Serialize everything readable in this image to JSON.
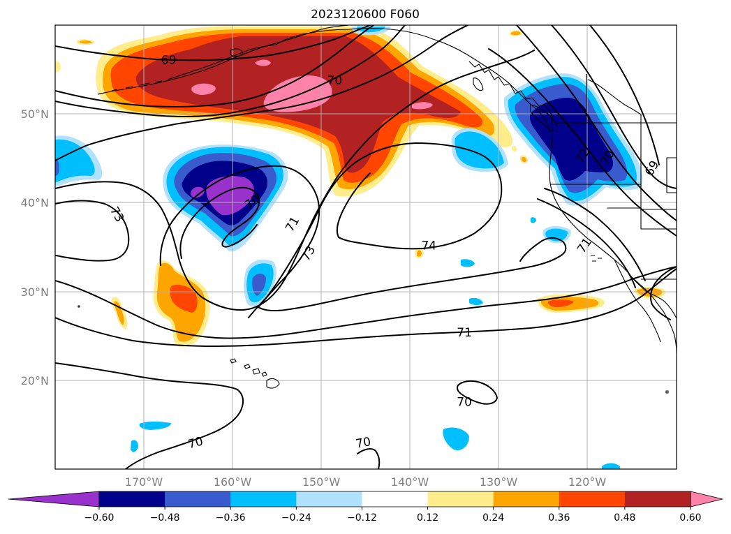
{
  "title": "2023120600 F060",
  "map": {
    "projection": "PlateCarree",
    "lon_range": [
      -180,
      -110
    ],
    "lat_range": [
      10,
      60
    ],
    "lat_ticks": [
      {
        "value": 20,
        "label": "20°N"
      },
      {
        "value": 30,
        "label": "30°N"
      },
      {
        "value": 40,
        "label": "40°N"
      },
      {
        "value": 50,
        "label": "50°N"
      }
    ],
    "lon_ticks": [
      {
        "value": -170,
        "label": "170°W"
      },
      {
        "value": -160,
        "label": "160°W"
      },
      {
        "value": -150,
        "label": "150°W"
      },
      {
        "value": -140,
        "label": "140°W"
      },
      {
        "value": -130,
        "label": "130°W"
      },
      {
        "value": -120,
        "label": "120°W"
      }
    ],
    "grid": true
  },
  "colorbar": {
    "extend": "both",
    "orientation": "horizontal",
    "levels": [
      "-0.60",
      "-0.48",
      "-0.36",
      "-0.24",
      "-0.12",
      "0.12",
      "0.24",
      "0.36",
      "0.48",
      "0.60"
    ],
    "colors": [
      "#9932cc",
      "#00008b",
      "#3a5bcd",
      "#00bfff",
      "#b0e2ff",
      "#ffffff",
      "#ffec8b",
      "#ffa500",
      "#ff4500",
      "#b22222",
      "#ff82ab"
    ]
  },
  "contour_labels": [
    {
      "text": "69",
      "lon": -167.2,
      "lat": 56.1,
      "rot": 0
    },
    {
      "text": "70",
      "lon": -148.5,
      "lat": 53.8,
      "rot": 0
    },
    {
      "text": "73",
      "lon": -173.0,
      "lat": 38.7,
      "rot": 60
    },
    {
      "text": "70",
      "lon": -157.8,
      "lat": 40.1,
      "rot": -35
    },
    {
      "text": "71",
      "lon": -153.3,
      "lat": 37.6,
      "rot": -60
    },
    {
      "text": "73",
      "lon": -151.5,
      "lat": 34.3,
      "rot": -60
    },
    {
      "text": "74",
      "lon": -137.9,
      "lat": 35.2,
      "rot": 0
    },
    {
      "text": "71",
      "lon": -133.9,
      "lat": 25.4,
      "rot": 0
    },
    {
      "text": "70",
      "lon": -133.9,
      "lat": 17.6,
      "rot": 0
    },
    {
      "text": "70",
      "lon": -164.2,
      "lat": 13.0,
      "rot": -15
    },
    {
      "text": "70",
      "lon": -145.3,
      "lat": 13.0,
      "rot": -10
    },
    {
      "text": "69",
      "lon": -112.8,
      "lat": 43.9,
      "rot": -60
    },
    {
      "text": "70",
      "lon": -117.8,
      "lat": 45.1,
      "rot": -60
    },
    {
      "text": "72",
      "lon": -120.6,
      "lat": 45.3,
      "rot": -60
    },
    {
      "text": "71",
      "lon": -120.4,
      "lat": 35.2,
      "rot": -55
    }
  ]
}
